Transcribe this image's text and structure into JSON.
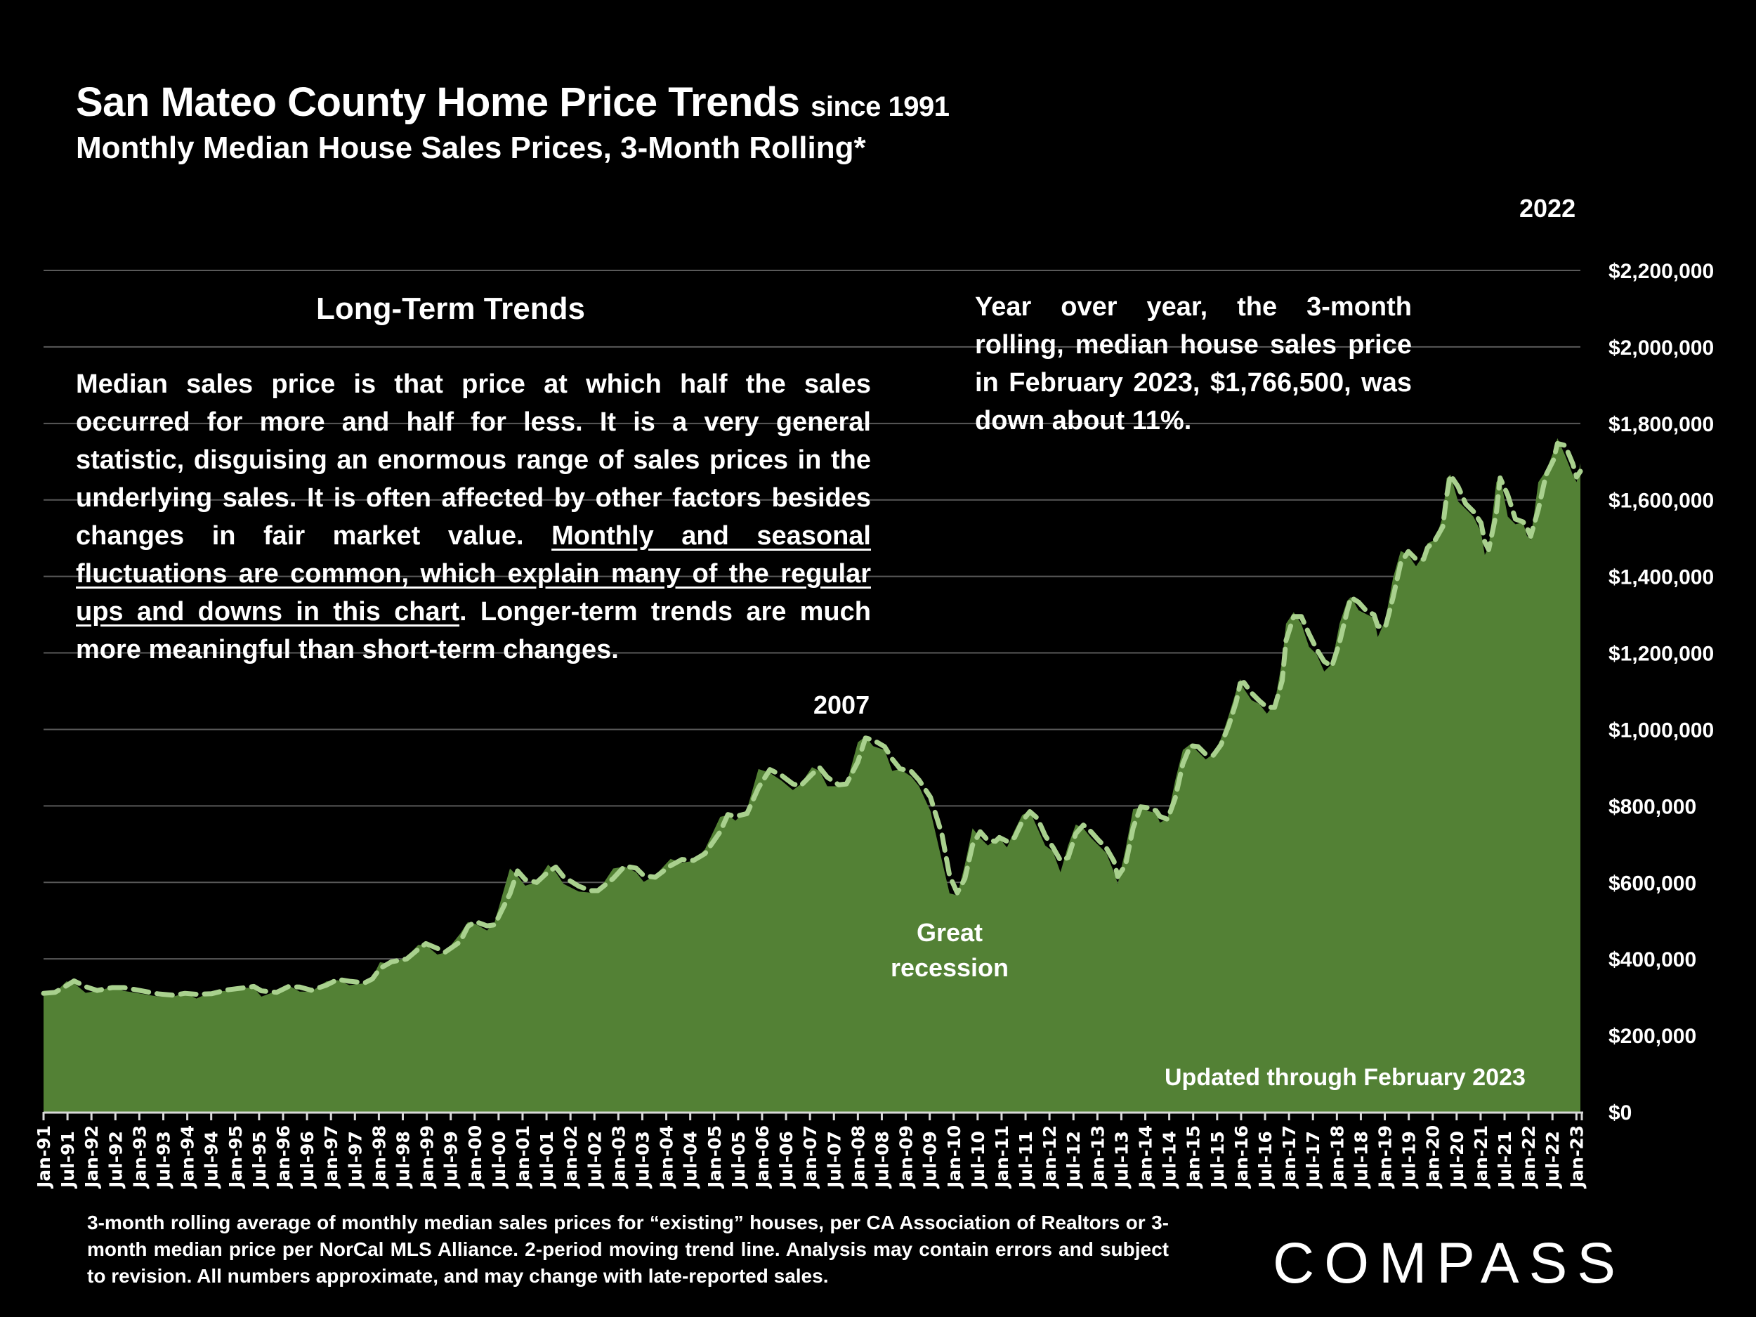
{
  "header": {
    "title_main": "San Mateo County Home Price Trends",
    "title_suffix": "since 1991",
    "subtitle": "Monthly Median House Sales Prices, 3-Month Rolling*"
  },
  "panel": {
    "heading": "Long-Term Trends",
    "body_part1": "Median sales price is that price at which half the sales occurred for more and half for less. It is a very general statistic, disguising an enormous range of sales prices in the underlying sales. It is often affected by other factors besides changes in fair market value. ",
    "body_underlined": "Monthly and seasonal fluctuations are common, which explain many of the regular ups and downs in this chart",
    "body_part2": ". Longer-term trends are much more meaningful than short-term changes."
  },
  "yoy_note": "Year over year, the 3-month rolling, median house sales price in February 2023, $1,766,500, was down about 11%.",
  "annotations": {
    "peak_2007": "2007",
    "peak_2022": "2022",
    "recession": "Great recession",
    "updated": "Updated through February 2023"
  },
  "footnote": "3-month rolling average of monthly median sales prices for “existing” houses, per CA Association of Realtors or 3-month median price per NorCal MLS Alliance. 2-period moving trend line. Analysis may contain errors and subject to revision. All numbers approximate, and may change with late-reported sales.",
  "brand": {
    "logo_text": "COMPASS"
  },
  "colors": {
    "area_fill": "#538135",
    "trend_line": "#a9d18e",
    "background": "#000000",
    "gridline": "#595959"
  },
  "chart_data": {
    "type": "area",
    "title": "San Mateo County Home Price Trends since 1991",
    "subtitle": "Monthly Median House Sales Prices, 3-Month Rolling*",
    "xlabel": "",
    "ylabel": "",
    "x_start": "Jan-91",
    "x_end": "Feb-23",
    "ylim": [
      0,
      2200000
    ],
    "y_ticks": [
      0,
      200000,
      400000,
      600000,
      800000,
      1000000,
      1200000,
      1400000,
      1600000,
      1800000,
      2000000,
      2200000
    ],
    "y_tick_labels": [
      "$0",
      "$200,000",
      "$400,000",
      "$600,000",
      "$800,000",
      "$1,000,000",
      "$1,200,000",
      "$1,400,000",
      "$1,600,000",
      "$1,800,000",
      "$2,000,000",
      "$2,200,000"
    ],
    "y_axis_position": "right",
    "grid": true,
    "x_tick_labels": [
      "Jan-91",
      "Jul-91",
      "Jan-92",
      "Jul-92",
      "Jan-93",
      "Jul-93",
      "Jan-94",
      "Jul-94",
      "Jan-95",
      "Jul-95",
      "Jan-96",
      "Jul-96",
      "Jan-97",
      "Jul-97",
      "Jan-98",
      "Jul-98",
      "Jan-99",
      "Jul-99",
      "Jan-00",
      "Jul-00",
      "Jan-01",
      "Jul-01",
      "Jan-02",
      "Jul-02",
      "Jan-03",
      "Jul-03",
      "Jan-04",
      "Jul-04",
      "Jan-05",
      "Jul-05",
      "Jan-06",
      "Jul-06",
      "Jan-07",
      "Jul-07",
      "Jan-08",
      "Jul-08",
      "Jan-09",
      "Jul-09",
      "Jan-10",
      "Jul-10",
      "Jan-11",
      "Jul-11",
      "Jan-12",
      "Jul-12",
      "Jan-13",
      "Jul-13",
      "Jan-14",
      "Jul-14",
      "Jan-15",
      "Jul-15",
      "Jan-16",
      "Jul-16",
      "Jan-17",
      "Jul-17",
      "Jan-18",
      "Jul-18",
      "Jan-19",
      "Jul-19",
      "Jan-20",
      "Jul-20",
      "Jan-21",
      "Jul-21",
      "Jan-22",
      "Jul-22",
      "Jan-23"
    ],
    "series": [
      {
        "name": "Monthly median house sales price, 3-month rolling",
        "style": "area",
        "points_month_index_value": [
          [
            0,
            310000
          ],
          [
            3,
            315000
          ],
          [
            6,
            345000
          ],
          [
            8,
            340000
          ],
          [
            11,
            315000
          ],
          [
            14,
            320000
          ],
          [
            18,
            330000
          ],
          [
            21,
            320000
          ],
          [
            26,
            312000
          ],
          [
            30,
            305000
          ],
          [
            34,
            305000
          ],
          [
            37,
            315000
          ],
          [
            40,
            300000
          ],
          [
            44,
            318000
          ],
          [
            48,
            320000
          ],
          [
            52,
            328000
          ],
          [
            55,
            328000
          ],
          [
            57,
            305000
          ],
          [
            61,
            320000
          ],
          [
            64,
            335000
          ],
          [
            67,
            318000
          ],
          [
            70,
            318000
          ],
          [
            74,
            345000
          ],
          [
            77,
            348000
          ],
          [
            80,
            335000
          ],
          [
            84,
            340000
          ],
          [
            86,
            355000
          ],
          [
            88,
            395000
          ],
          [
            91,
            390000
          ],
          [
            95,
            410000
          ],
          [
            98,
            440000
          ],
          [
            100,
            440000
          ],
          [
            103,
            415000
          ],
          [
            105,
            420000
          ],
          [
            109,
            470000
          ],
          [
            111,
            500000
          ],
          [
            113,
            495000
          ],
          [
            116,
            478000
          ],
          [
            118,
            500000
          ],
          [
            122,
            640000
          ],
          [
            124,
            620000
          ],
          [
            126,
            595000
          ],
          [
            129,
            605000
          ],
          [
            132,
            650000
          ],
          [
            134,
            630000
          ],
          [
            136,
            600000
          ],
          [
            140,
            580000
          ],
          [
            143,
            577000
          ],
          [
            145,
            580000
          ],
          [
            149,
            640000
          ],
          [
            152,
            645000
          ],
          [
            155,
            630000
          ],
          [
            157,
            605000
          ],
          [
            160,
            622000
          ],
          [
            164,
            665000
          ],
          [
            167,
            655000
          ],
          [
            170,
            660000
          ],
          [
            173,
            690000
          ],
          [
            177,
            775000
          ],
          [
            179,
            780000
          ],
          [
            181,
            765000
          ],
          [
            184,
            795000
          ],
          [
            187,
            900000
          ],
          [
            190,
            890000
          ],
          [
            193,
            870000
          ],
          [
            196,
            845000
          ],
          [
            198,
            860000
          ],
          [
            201,
            905000
          ],
          [
            203,
            895000
          ],
          [
            205,
            855000
          ],
          [
            208,
            855000
          ],
          [
            210,
            860000
          ],
          [
            213,
            970000
          ],
          [
            215,
            985000
          ],
          [
            217,
            960000
          ],
          [
            220,
            950000
          ],
          [
            222,
            895000
          ],
          [
            224,
            900000
          ],
          [
            227,
            880000
          ],
          [
            229,
            855000
          ],
          [
            232,
            790000
          ],
          [
            235,
            660000
          ],
          [
            237,
            575000
          ],
          [
            239,
            570000
          ],
          [
            241,
            650000
          ],
          [
            243,
            745000
          ],
          [
            245,
            720000
          ],
          [
            247,
            700000
          ],
          [
            249,
            715000
          ],
          [
            250,
            720000
          ],
          [
            252,
            695000
          ],
          [
            254,
            740000
          ],
          [
            256,
            780000
          ],
          [
            258,
            790000
          ],
          [
            260,
            745000
          ],
          [
            262,
            700000
          ],
          [
            264,
            685000
          ],
          [
            266,
            630000
          ],
          [
            268,
            700000
          ],
          [
            270,
            755000
          ],
          [
            272,
            745000
          ],
          [
            274,
            720000
          ],
          [
            276,
            700000
          ],
          [
            278,
            680000
          ],
          [
            280,
            630000
          ],
          [
            281,
            600000
          ],
          [
            283,
            690000
          ],
          [
            285,
            795000
          ],
          [
            287,
            800000
          ],
          [
            289,
            790000
          ],
          [
            291,
            785000
          ],
          [
            292,
            760000
          ],
          [
            294,
            770000
          ],
          [
            296,
            870000
          ],
          [
            298,
            950000
          ],
          [
            300,
            965000
          ],
          [
            302,
            945000
          ],
          [
            304,
            925000
          ],
          [
            306,
            940000
          ],
          [
            308,
            980000
          ],
          [
            310,
            1040000
          ],
          [
            312,
            1105000
          ],
          [
            313,
            1135000
          ],
          [
            314,
            1110000
          ],
          [
            316,
            1080000
          ],
          [
            318,
            1070000
          ],
          [
            320,
            1045000
          ],
          [
            322,
            1070000
          ],
          [
            324,
            1185000
          ],
          [
            325,
            1280000
          ],
          [
            327,
            1310000
          ],
          [
            329,
            1280000
          ],
          [
            331,
            1220000
          ],
          [
            333,
            1200000
          ],
          [
            335,
            1155000
          ],
          [
            337,
            1175000
          ],
          [
            339,
            1280000
          ],
          [
            341,
            1340000
          ],
          [
            342,
            1350000
          ],
          [
            344,
            1315000
          ],
          [
            346,
            1305000
          ],
          [
            348,
            1295000
          ],
          [
            349,
            1245000
          ],
          [
            351,
            1290000
          ],
          [
            353,
            1400000
          ],
          [
            355,
            1470000
          ],
          [
            357,
            1460000
          ],
          [
            359,
            1430000
          ],
          [
            361,
            1460000
          ],
          [
            362,
            1490000
          ],
          [
            364,
            1500000
          ],
          [
            366,
            1560000
          ],
          [
            367,
            1660000
          ],
          [
            368,
            1670000
          ],
          [
            370,
            1600000
          ],
          [
            372,
            1580000
          ],
          [
            374,
            1560000
          ],
          [
            376,
            1520000
          ],
          [
            377,
            1460000
          ],
          [
            378,
            1480000
          ],
          [
            380,
            1650000
          ],
          [
            381,
            1665000
          ],
          [
            383,
            1560000
          ],
          [
            385,
            1540000
          ],
          [
            387,
            1545000
          ],
          [
            388,
            1510000
          ],
          [
            389,
            1500000
          ],
          [
            391,
            1650000
          ],
          [
            393,
            1680000
          ],
          [
            395,
            1730000
          ],
          [
            396,
            1765000
          ],
          [
            398,
            1720000
          ],
          [
            400,
            1670000
          ],
          [
            401,
            1650000
          ],
          [
            402,
            1700000
          ]
        ]
      }
    ],
    "annotations": [
      {
        "text": "2007",
        "at": "Jul-07"
      },
      {
        "text": "Great recession",
        "at": "Apr-09"
      },
      {
        "text": "2022",
        "at": "Apr-22"
      },
      {
        "text": "Updated through February 2023",
        "placement": "bottom-right"
      }
    ]
  }
}
